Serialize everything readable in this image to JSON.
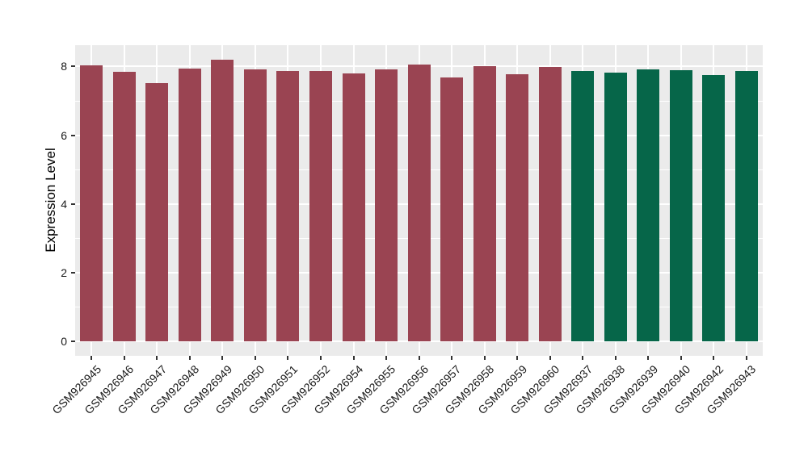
{
  "figure": {
    "background": "#FFFFFF",
    "panel_background": "#EBEBEB",
    "gridline_color": "#FFFFFF",
    "tick_mark_color": "#333333",
    "tick_label_color": "#1a1a1a",
    "axis_title_color": "#000000"
  },
  "chart_data": {
    "type": "bar",
    "title": "",
    "xlabel": "",
    "ylabel": "Expression Level",
    "ylim": [
      -0.42,
      8.62
    ],
    "yticks": [
      0,
      2,
      4,
      6,
      8
    ],
    "minor_yticks": [
      1,
      3,
      5,
      7
    ],
    "grid": "major-and-minor, white on grey panel",
    "legend": "none",
    "categories": [
      "GSM926945",
      "GSM926946",
      "GSM926947",
      "GSM926948",
      "GSM926949",
      "GSM926950",
      "GSM926951",
      "GSM926952",
      "GSM926954",
      "GSM926955",
      "GSM926956",
      "GSM926957",
      "GSM926958",
      "GSM926959",
      "GSM926960",
      "GSM926937",
      "GSM926938",
      "GSM926939",
      "GSM926940",
      "GSM926942",
      "GSM926943"
    ],
    "values": [
      8.04,
      7.84,
      7.51,
      7.95,
      8.19,
      7.92,
      7.87,
      7.86,
      7.8,
      7.91,
      8.05,
      7.68,
      8.02,
      7.77,
      7.98,
      7.87,
      7.83,
      7.92,
      7.89,
      7.75,
      7.86
    ],
    "group_colors": {
      "red": "#9A4452",
      "green": "#066649"
    },
    "bar_colors": [
      "#9A4452",
      "#9A4452",
      "#9A4452",
      "#9A4452",
      "#9A4452",
      "#9A4452",
      "#9A4452",
      "#9A4452",
      "#9A4452",
      "#9A4452",
      "#9A4452",
      "#9A4452",
      "#9A4452",
      "#9A4452",
      "#9A4452",
      "#066649",
      "#066649",
      "#066649",
      "#066649",
      "#066649",
      "#066649"
    ]
  }
}
